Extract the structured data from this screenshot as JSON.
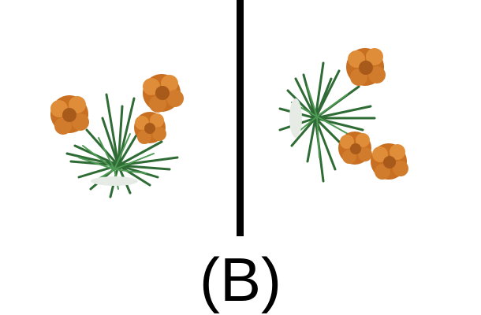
{
  "caption": "(B)",
  "colors": {
    "background": "#ffffff",
    "divider": "#000000",
    "petal": "#d9822b",
    "petal_dark": "#a85a1a",
    "leaf": "#2f6b35",
    "leaf_light": "#4f9a55"
  },
  "panels": [
    {
      "name": "left-plant",
      "flowers": 3
    },
    {
      "name": "right-plant",
      "flowers": 3
    }
  ]
}
